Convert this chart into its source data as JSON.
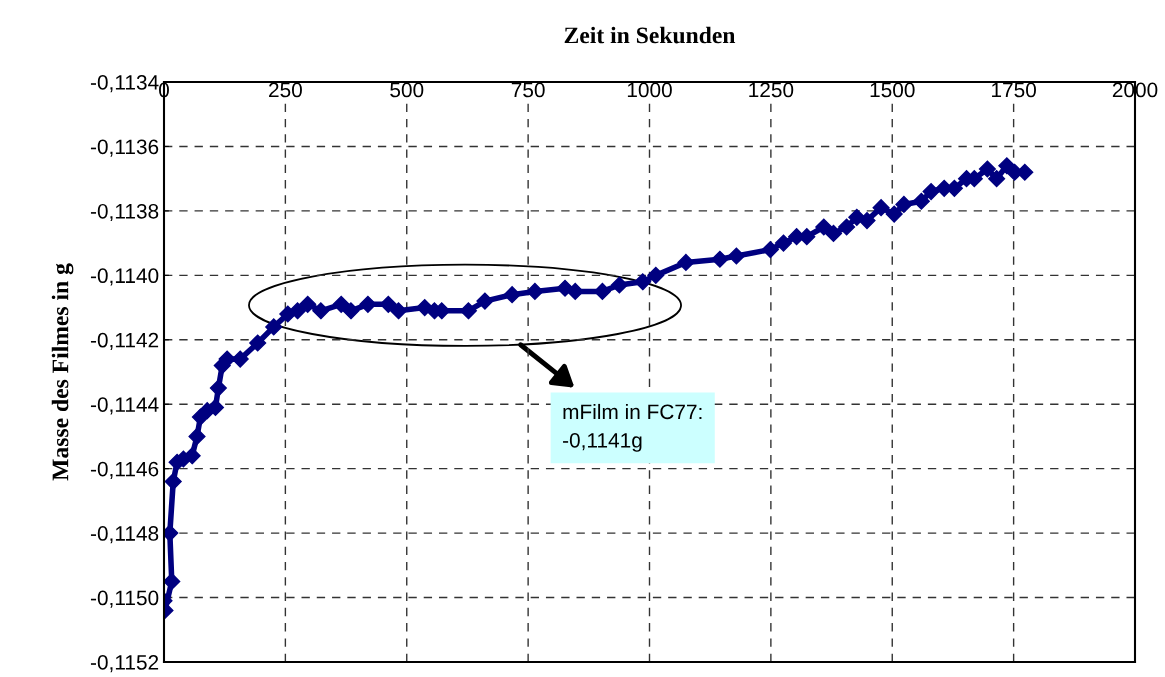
{
  "chart_data": {
    "type": "line",
    "xlabel": "Zeit in Sekunden",
    "ylabel": "Masse des Filmes in g",
    "series": [
      {
        "color": "#000080",
        "x": [
          0,
          2,
          16,
          12,
          19,
          27,
          40,
          58,
          68,
          75,
          89,
          106,
          112,
          120,
          130,
          157,
          193,
          226,
          255,
          275,
          296,
          323,
          365,
          385,
          420,
          462,
          483,
          537,
          557,
          572,
          627,
          661,
          717,
          764,
          826,
          847,
          903,
          938,
          986,
          1013,
          1075,
          1145,
          1179,
          1249,
          1276,
          1303,
          1324,
          1359,
          1379,
          1406,
          1427,
          1448,
          1477,
          1504,
          1524,
          1560,
          1580,
          1607,
          1628,
          1653,
          1669,
          1696,
          1715,
          1736,
          1752,
          1773
        ],
        "values": [
          -0.11501,
          -0.11504,
          -0.11495,
          -0.1148,
          -0.11464,
          -0.11458,
          -0.11457,
          -0.11456,
          -0.1145,
          -0.11444,
          -0.11442,
          -0.11441,
          -0.11435,
          -0.11428,
          -0.11426,
          -0.11426,
          -0.11421,
          -0.11416,
          -0.11412,
          -0.11411,
          -0.11409,
          -0.11411,
          -0.11409,
          -0.11411,
          -0.11409,
          -0.11409,
          -0.11411,
          -0.1141,
          -0.11411,
          -0.11411,
          -0.11411,
          -0.11408,
          -0.11406,
          -0.11405,
          -0.11404,
          -0.11405,
          -0.11405,
          -0.11403,
          -0.11402,
          -0.114,
          -0.11396,
          -0.11395,
          -0.11394,
          -0.11392,
          -0.1139,
          -0.11388,
          -0.11388,
          -0.11385,
          -0.11387,
          -0.11385,
          -0.11382,
          -0.11383,
          -0.11379,
          -0.11381,
          -0.11378,
          -0.11377,
          -0.11374,
          -0.11373,
          -0.11373,
          -0.1137,
          -0.1137,
          -0.11367,
          -0.1137,
          -0.11366,
          -0.11368,
          -0.11368
        ]
      }
    ],
    "xlim": [
      0,
      2000
    ],
    "xticks": [
      0,
      250,
      500,
      750,
      1000,
      1250,
      1500,
      1750,
      2000
    ],
    "ylim": [
      -0.1152,
      -0.1134
    ],
    "yticks": [
      {
        "value": -0.1152,
        "label": "-0,1152"
      },
      {
        "value": -0.115,
        "label": "-0,1150"
      },
      {
        "value": -0.1148,
        "label": "-0,1148"
      },
      {
        "value": -0.1146,
        "label": "-0,1146"
      },
      {
        "value": -0.1144,
        "label": "-0,1144"
      },
      {
        "value": -0.1142,
        "label": "-0,1142"
      },
      {
        "value": -0.114,
        "label": "-0,1140"
      },
      {
        "value": -0.1138,
        "label": "-0,1138"
      },
      {
        "value": -0.1136,
        "label": "-0,1136"
      },
      {
        "value": -0.1134,
        "label": "-0,1134"
      }
    ],
    "grid": true,
    "marker": "diamond",
    "line_style": "solid",
    "legend": false,
    "annotations": [
      "mFilm in FC77:\n-0,1141g"
    ]
  }
}
